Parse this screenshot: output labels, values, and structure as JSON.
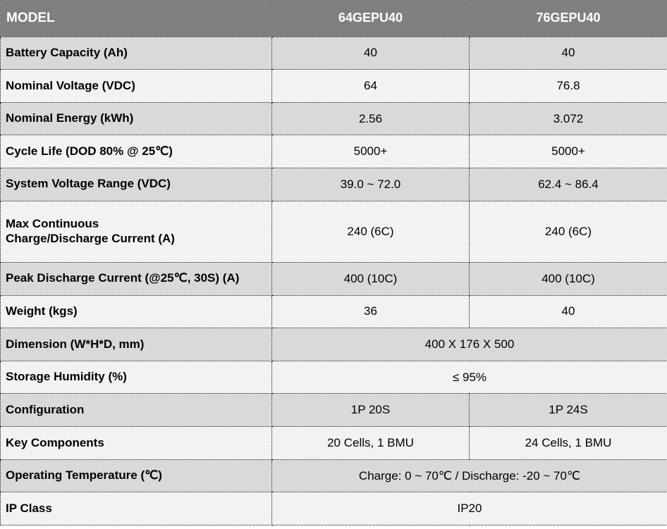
{
  "table": {
    "header": {
      "model_label": "MODEL",
      "columns": [
        "64GEPU40",
        "76GEPU40"
      ]
    },
    "rows": [
      {
        "label": "Battery Capacity (Ah)",
        "span": false,
        "values": [
          "40",
          "40"
        ]
      },
      {
        "label": "Nominal Voltage (VDC)",
        "span": false,
        "values": [
          "64",
          "76.8"
        ]
      },
      {
        "label": "Nominal Energy (kWh)",
        "span": false,
        "values": [
          "2.56",
          "3.072"
        ]
      },
      {
        "label": "Cycle Life (DOD 80% @ 25℃)",
        "span": false,
        "values": [
          "5000+",
          "5000+"
        ]
      },
      {
        "label": "System Voltage Range (VDC)",
        "span": false,
        "values": [
          "39.0 ~ 72.0",
          "62.4 ~ 86.4"
        ]
      },
      {
        "label": "Max Continuous\nCharge/Discharge Current (A)",
        "span": false,
        "values": [
          "240 (6C)",
          "240 (6C)"
        ]
      },
      {
        "label": "Peak Discharge Current (@25℃, 30S) (A)",
        "span": false,
        "values": [
          "400 (10C)",
          "400 (10C)"
        ]
      },
      {
        "label": "Weight (kgs)",
        "span": false,
        "values": [
          "36",
          "40"
        ]
      },
      {
        "label": "Dimension (W*H*D, mm)",
        "span": true,
        "values": [
          "400 X 176 X 500"
        ]
      },
      {
        "label": "Storage Humidity (%)",
        "span": true,
        "values": [
          "≤ 95%"
        ]
      },
      {
        "label": "Configuration",
        "span": false,
        "values": [
          "1P 20S",
          "1P 24S"
        ]
      },
      {
        "label": "Key Components",
        "span": false,
        "values": [
          "20 Cells, 1 BMU",
          "24 Cells, 1 BMU"
        ]
      },
      {
        "label": "Operating Temperature (℃)",
        "span": true,
        "values": [
          "Charge: 0 ~ 70℃ / Discharge: -20 ~ 70℃"
        ]
      },
      {
        "label": "IP Class",
        "span": true,
        "values": [
          "IP20"
        ]
      }
    ],
    "colors": {
      "header_bg": "#7f7f7f",
      "header_text": "#ffffff",
      "row_dark_bg": "#d9d9d9",
      "row_light_bg": "#f2f2f2",
      "border": "#000000"
    }
  }
}
